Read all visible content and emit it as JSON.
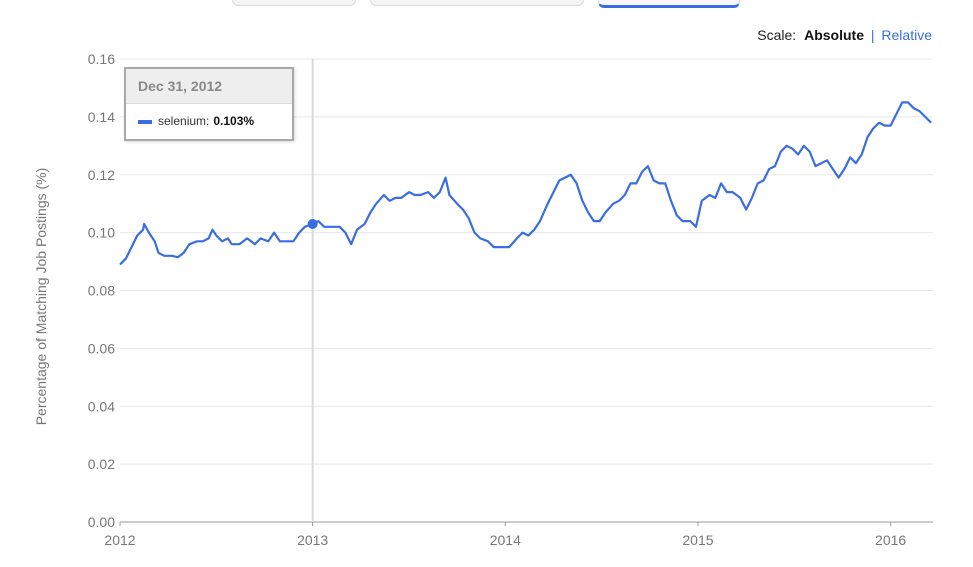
{
  "scale": {
    "label": "Scale:",
    "absolute": "Absolute",
    "separator": "|",
    "relative": "Relative"
  },
  "tooltip": {
    "date": "Dec 31, 2012",
    "series": "selenium",
    "value": "0.103%"
  },
  "colors": {
    "line": "#3a6ee0",
    "grid": "#e8e8e8",
    "axis_text": "#777777",
    "crosshair": "#d9d9d9"
  },
  "chart_data": {
    "type": "line",
    "ylabel": "Percentage of Matching Job Postings (%)",
    "xlabel": "",
    "ylim": [
      0,
      0.16
    ],
    "yticks": [
      "0.00",
      "0.02",
      "0.04",
      "0.06",
      "0.08",
      "0.10",
      "0.12",
      "0.14",
      "0.16"
    ],
    "xlim": [
      2012.0,
      2016.22
    ],
    "xticks": [
      "2012",
      "2013",
      "2014",
      "2015",
      "2016"
    ],
    "grid": true,
    "highlight": {
      "x": 2013.0,
      "y": 0.103
    },
    "series": [
      {
        "name": "selenium",
        "points": [
          [
            2012.0,
            0.089
          ],
          [
            2012.03,
            0.091
          ],
          [
            2012.06,
            0.095
          ],
          [
            2012.09,
            0.099
          ],
          [
            2012.12,
            0.101
          ],
          [
            2012.125,
            0.103
          ],
          [
            2012.15,
            0.1
          ],
          [
            2012.18,
            0.097
          ],
          [
            2012.2,
            0.093
          ],
          [
            2012.23,
            0.092
          ],
          [
            2012.27,
            0.092
          ],
          [
            2012.3,
            0.0915
          ],
          [
            2012.33,
            0.093
          ],
          [
            2012.36,
            0.096
          ],
          [
            2012.4,
            0.097
          ],
          [
            2012.43,
            0.097
          ],
          [
            2012.46,
            0.098
          ],
          [
            2012.48,
            0.101
          ],
          [
            2012.5,
            0.099
          ],
          [
            2012.53,
            0.097
          ],
          [
            2012.56,
            0.098
          ],
          [
            2012.58,
            0.096
          ],
          [
            2012.62,
            0.096
          ],
          [
            2012.66,
            0.098
          ],
          [
            2012.7,
            0.096
          ],
          [
            2012.73,
            0.098
          ],
          [
            2012.77,
            0.097
          ],
          [
            2012.8,
            0.1
          ],
          [
            2012.83,
            0.097
          ],
          [
            2012.87,
            0.097
          ],
          [
            2012.9,
            0.097
          ],
          [
            2012.93,
            0.1
          ],
          [
            2012.96,
            0.102
          ],
          [
            2013.0,
            0.103
          ],
          [
            2013.03,
            0.104
          ],
          [
            2013.06,
            0.102
          ],
          [
            2013.1,
            0.102
          ],
          [
            2013.14,
            0.102
          ],
          [
            2013.17,
            0.1
          ],
          [
            2013.2,
            0.096
          ],
          [
            2013.23,
            0.101
          ],
          [
            2013.27,
            0.103
          ],
          [
            2013.3,
            0.107
          ],
          [
            2013.33,
            0.11
          ],
          [
            2013.37,
            0.113
          ],
          [
            2013.4,
            0.111
          ],
          [
            2013.43,
            0.112
          ],
          [
            2013.46,
            0.112
          ],
          [
            2013.5,
            0.114
          ],
          [
            2013.53,
            0.113
          ],
          [
            2013.56,
            0.113
          ],
          [
            2013.6,
            0.114
          ],
          [
            2013.63,
            0.112
          ],
          [
            2013.66,
            0.114
          ],
          [
            2013.69,
            0.119
          ],
          [
            2013.71,
            0.113
          ],
          [
            2013.75,
            0.11
          ],
          [
            2013.78,
            0.108
          ],
          [
            2013.81,
            0.105
          ],
          [
            2013.84,
            0.1
          ],
          [
            2013.87,
            0.098
          ],
          [
            2013.91,
            0.097
          ],
          [
            2013.94,
            0.095
          ],
          [
            2013.98,
            0.095
          ],
          [
            2014.02,
            0.095
          ],
          [
            2014.06,
            0.098
          ],
          [
            2014.09,
            0.1
          ],
          [
            2014.12,
            0.099
          ],
          [
            2014.15,
            0.101
          ],
          [
            2014.18,
            0.104
          ],
          [
            2014.22,
            0.11
          ],
          [
            2014.25,
            0.114
          ],
          [
            2014.28,
            0.118
          ],
          [
            2014.31,
            0.119
          ],
          [
            2014.34,
            0.12
          ],
          [
            2014.37,
            0.117
          ],
          [
            2014.4,
            0.111
          ],
          [
            2014.43,
            0.107
          ],
          [
            2014.46,
            0.104
          ],
          [
            2014.49,
            0.104
          ],
          [
            2014.52,
            0.107
          ],
          [
            2014.56,
            0.11
          ],
          [
            2014.59,
            0.111
          ],
          [
            2014.62,
            0.113
          ],
          [
            2014.65,
            0.117
          ],
          [
            2014.68,
            0.117
          ],
          [
            2014.71,
            0.121
          ],
          [
            2014.74,
            0.123
          ],
          [
            2014.77,
            0.118
          ],
          [
            2014.8,
            0.117
          ],
          [
            2014.83,
            0.117
          ],
          [
            2014.86,
            0.111
          ],
          [
            2014.89,
            0.106
          ],
          [
            2014.92,
            0.104
          ],
          [
            2014.96,
            0.104
          ],
          [
            2014.99,
            0.102
          ],
          [
            2015.02,
            0.111
          ],
          [
            2015.06,
            0.113
          ],
          [
            2015.09,
            0.112
          ],
          [
            2015.12,
            0.117
          ],
          [
            2015.15,
            0.114
          ],
          [
            2015.18,
            0.114
          ],
          [
            2015.22,
            0.112
          ],
          [
            2015.25,
            0.108
          ],
          [
            2015.28,
            0.112
          ],
          [
            2015.31,
            0.117
          ],
          [
            2015.34,
            0.118
          ],
          [
            2015.37,
            0.122
          ],
          [
            2015.4,
            0.123
          ],
          [
            2015.43,
            0.128
          ],
          [
            2015.46,
            0.13
          ],
          [
            2015.49,
            0.129
          ],
          [
            2015.52,
            0.127
          ],
          [
            2015.55,
            0.13
          ],
          [
            2015.58,
            0.128
          ],
          [
            2015.61,
            0.123
          ],
          [
            2015.64,
            0.124
          ],
          [
            2015.67,
            0.125
          ],
          [
            2015.7,
            0.122
          ],
          [
            2015.73,
            0.119
          ],
          [
            2015.76,
            0.122
          ],
          [
            2015.79,
            0.126
          ],
          [
            2015.82,
            0.124
          ],
          [
            2015.85,
            0.127
          ],
          [
            2015.88,
            0.133
          ],
          [
            2015.91,
            0.136
          ],
          [
            2015.94,
            0.138
          ],
          [
            2015.97,
            0.137
          ],
          [
            2016.0,
            0.137
          ],
          [
            2016.03,
            0.141
          ],
          [
            2016.06,
            0.145
          ],
          [
            2016.09,
            0.145
          ],
          [
            2016.12,
            0.143
          ],
          [
            2016.15,
            0.142
          ],
          [
            2016.18,
            0.14
          ],
          [
            2016.21,
            0.138
          ]
        ]
      }
    ]
  }
}
